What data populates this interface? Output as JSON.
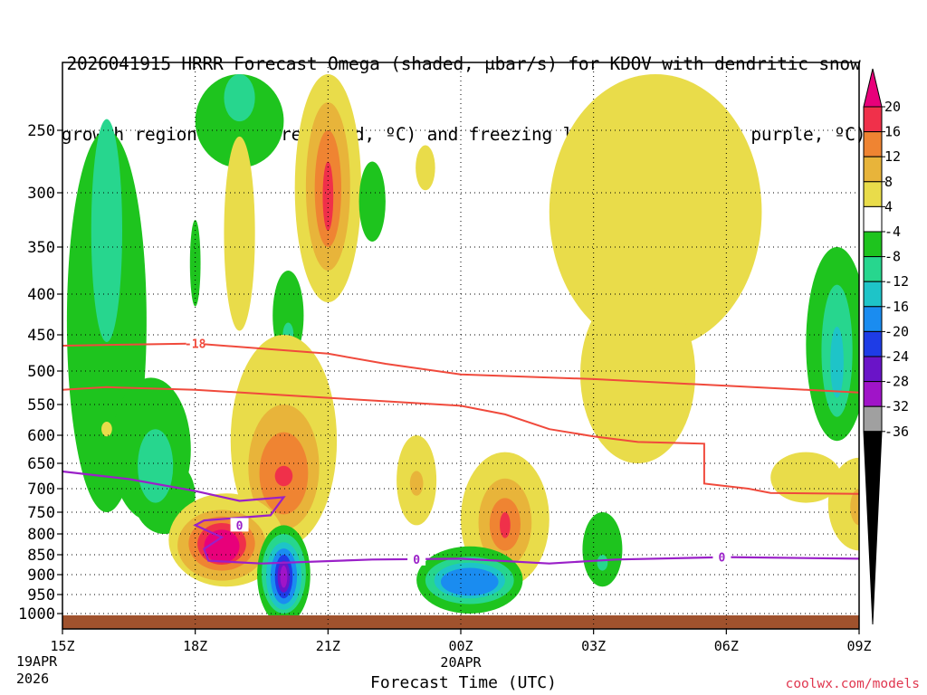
{
  "chart_data": {
    "type": "heatmap",
    "title_line1": "2026041915 HRRR Forecast Omega (shaded, μbar/s) for KDOV with dendritic snow",
    "title_line2": "growth region (contoured, red, ºC) and freezing level (contoured, purple, ºC)",
    "xlabel": "Forecast Time (UTC)",
    "x_ticks": [
      "15Z",
      "18Z",
      "21Z",
      "00Z",
      "03Z",
      "06Z",
      "09Z"
    ],
    "x_hours": [
      0,
      3,
      6,
      9,
      12,
      15,
      18
    ],
    "x_subtitle_1": "19APR",
    "x_subtitle_2": "2026",
    "x_subtitle_00z": "20APR",
    "y_ticks": [
      "250",
      "300",
      "350",
      "400",
      "450",
      "500",
      "550",
      "600",
      "650",
      "700",
      "750",
      "800",
      "850",
      "900",
      "950",
      "1000"
    ],
    "y_values": [
      250,
      300,
      350,
      400,
      450,
      500,
      550,
      600,
      650,
      700,
      750,
      800,
      850,
      900,
      950,
      1000
    ],
    "y_range_hpa": [
      200,
      1015
    ],
    "x_range_hours": [
      0,
      18
    ],
    "colorbar_labels": [
      "20",
      "16",
      "12",
      "8",
      "4",
      "-4",
      "-8",
      "-12",
      "-16",
      "-20",
      "-24",
      "-28",
      "-32",
      "-36"
    ],
    "colorbar_bins": [
      {
        "value": "22+",
        "color": "#e8007a"
      },
      {
        "value": "20",
        "color": "#f0304a"
      },
      {
        "value": "16",
        "color": "#ef8432"
      },
      {
        "value": "12",
        "color": "#e8b43a"
      },
      {
        "value": "8",
        "color": "#e9dc4a"
      },
      {
        "value": "4",
        "color": "#ffffff"
      },
      {
        "value": "-4",
        "color": "#1ec41e"
      },
      {
        "value": "-8",
        "color": "#27d68e"
      },
      {
        "value": "-12",
        "color": "#1ec4c8"
      },
      {
        "value": "-16",
        "color": "#1a8cf0"
      },
      {
        "value": "-20",
        "color": "#1e3ce6"
      },
      {
        "value": "-24",
        "color": "#6a14c8"
      },
      {
        "value": "-28",
        "color": "#a014c8"
      },
      {
        "value": "-32",
        "color": "#a0a0a0"
      },
      {
        "value": "-36",
        "color": "#000000"
      }
    ],
    "contour_labels": {
      "dgz_top": "-18",
      "freezing": "0"
    },
    "contours": {
      "dgz_upper_minus18": [
        [
          0,
          465
        ],
        [
          3,
          462
        ],
        [
          6,
          476
        ],
        [
          7.3,
          490
        ],
        [
          9,
          505
        ],
        [
          12,
          512
        ],
        [
          15,
          522
        ],
        [
          18,
          532
        ]
      ],
      "dgz_lower_minus12": [
        [
          0,
          528
        ],
        [
          1,
          524
        ],
        [
          3,
          528
        ],
        [
          6,
          540
        ],
        [
          9,
          552
        ],
        [
          10,
          566
        ],
        [
          11,
          590
        ],
        [
          12,
          602
        ],
        [
          13,
          612
        ],
        [
          14.5,
          615
        ],
        [
          14.5,
          690
        ],
        [
          15.5,
          700
        ],
        [
          16,
          709
        ],
        [
          18,
          711
        ]
      ],
      "freezing_level_0c": [
        [
          0,
          666
        ],
        [
          1.5,
          681
        ],
        [
          3,
          705
        ],
        [
          4,
          726
        ],
        [
          5,
          718
        ],
        [
          4.7,
          757
        ],
        [
          3.2,
          769
        ],
        [
          3,
          780
        ],
        [
          3.6,
          808
        ],
        [
          3.2,
          836
        ],
        [
          3.3,
          865
        ],
        [
          4.5,
          872
        ],
        [
          7,
          862
        ],
        [
          9,
          860
        ],
        [
          11,
          872
        ],
        [
          12.5,
          862
        ],
        [
          15,
          856
        ],
        [
          18,
          860
        ]
      ]
    },
    "omega_regions": [
      {
        "bin": "-4",
        "center_h": 1.0,
        "center_p": 470,
        "note": "long green band 250-790 hPa"
      },
      {
        "bin": "-8",
        "center_h": 1.0,
        "center_p": 350
      },
      {
        "bin": "-4",
        "center_h": 4.0,
        "center_p": 230
      },
      {
        "bin": "8",
        "center_h": 6.0,
        "center_p": 300
      },
      {
        "bin": "20",
        "center_h": 6.0,
        "center_p": 305
      },
      {
        "bin": "8",
        "center_h": 13.5,
        "center_p": 390,
        "note": "large yellow region 210-640 hPa"
      },
      {
        "bin": "-4",
        "center_h": 17.5,
        "center_p": 480
      },
      {
        "bin": "20",
        "center_h": 5.0,
        "center_p": 675
      },
      {
        "bin": "22+",
        "center_h": 3.6,
        "center_p": 825
      },
      {
        "bin": "-28",
        "center_h": 5.0,
        "center_p": 905
      },
      {
        "bin": "-16",
        "center_h": 9.2,
        "center_p": 915
      },
      {
        "bin": "20",
        "center_h": 10.0,
        "center_p": 780
      },
      {
        "bin": "8",
        "center_h": 17.5,
        "center_p": 720
      }
    ],
    "terrain_color": "#a0522d"
  },
  "credit": "coolwx.com/models"
}
